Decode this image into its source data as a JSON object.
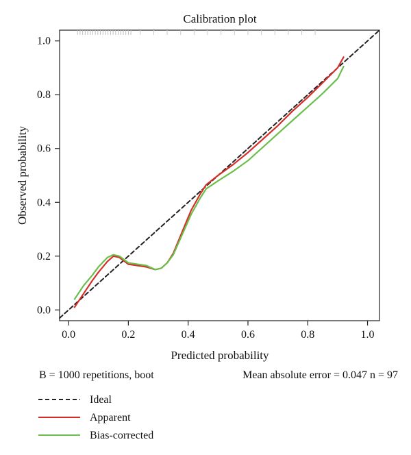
{
  "chart_data": {
    "type": "line",
    "title": "Calibration plot",
    "xlabel": "Predicted probability",
    "ylabel": "Observed probability",
    "xlim": [
      -0.03,
      1.04
    ],
    "ylim": [
      -0.04,
      1.04
    ],
    "x_ticks": [
      "0.0",
      "0.2",
      "0.4",
      "0.6",
      "0.8",
      "1.0"
    ],
    "y_ticks": [
      "0.0",
      "0.2",
      "0.4",
      "0.6",
      "0.8",
      "1.0"
    ],
    "grid": false,
    "legend_position": "bottom-left",
    "series": [
      {
        "name": "Ideal",
        "style": "dashed",
        "color": "#222222",
        "x": [
          -0.03,
          1.04
        ],
        "y": [
          -0.03,
          1.04
        ]
      },
      {
        "name": "Apparent",
        "style": "solid",
        "color": "#d62f2a",
        "x": [
          0.02,
          0.05,
          0.08,
          0.1,
          0.13,
          0.15,
          0.17,
          0.2,
          0.23,
          0.26,
          0.29,
          0.31,
          0.33,
          0.35,
          0.38,
          0.41,
          0.44,
          0.46,
          0.5,
          0.55,
          0.6,
          0.65,
          0.7,
          0.75,
          0.8,
          0.85,
          0.9,
          0.92
        ],
        "y": [
          0.01,
          0.06,
          0.11,
          0.14,
          0.18,
          0.2,
          0.195,
          0.17,
          0.165,
          0.16,
          0.15,
          0.155,
          0.175,
          0.21,
          0.29,
          0.37,
          0.43,
          0.465,
          0.5,
          0.54,
          0.585,
          0.635,
          0.685,
          0.74,
          0.79,
          0.845,
          0.9,
          0.94
        ]
      },
      {
        "name": "Bias-corrected",
        "style": "solid",
        "color": "#6abf4b",
        "x": [
          0.02,
          0.05,
          0.08,
          0.1,
          0.13,
          0.15,
          0.17,
          0.2,
          0.23,
          0.26,
          0.29,
          0.31,
          0.33,
          0.35,
          0.38,
          0.41,
          0.44,
          0.46,
          0.5,
          0.55,
          0.6,
          0.65,
          0.7,
          0.75,
          0.8,
          0.85,
          0.9,
          0.92
        ],
        "y": [
          0.04,
          0.09,
          0.13,
          0.16,
          0.195,
          0.205,
          0.2,
          0.175,
          0.17,
          0.165,
          0.15,
          0.155,
          0.175,
          0.205,
          0.28,
          0.355,
          0.415,
          0.45,
          0.48,
          0.515,
          0.555,
          0.605,
          0.655,
          0.705,
          0.755,
          0.805,
          0.86,
          0.905
        ]
      }
    ],
    "footnote_left": "B = 1000 repetitions, boot",
    "footnote_right": "Mean absolute error = 0.047 n = 97"
  }
}
